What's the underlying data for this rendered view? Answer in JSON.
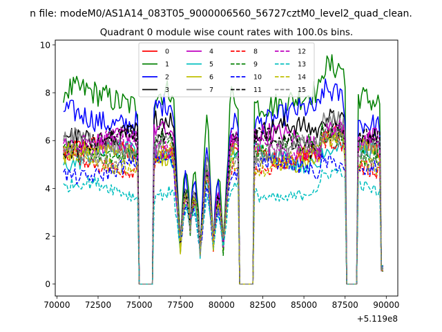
{
  "suptitle": "n file: modeM0/AS1A14_083T05_9000006560_56727cztM0_level2_quad_clean.",
  "chart_data": {
    "type": "line",
    "title": "Quadrant 0 module wise count rates with 100.0s bins.",
    "xlabel": "",
    "ylabel": "",
    "x_offset_label": "+5.119e8",
    "xlim": [
      69900,
      90700
    ],
    "ylim": [
      -0.5,
      10.2
    ],
    "x_ticks": [
      70000,
      72500,
      75000,
      77500,
      80000,
      82500,
      85000,
      87500,
      90000
    ],
    "x_tick_labels": [
      "70000",
      "72500",
      "75000",
      "77500",
      "80000",
      "82500",
      "85000",
      "87500",
      "90000"
    ],
    "y_ticks": [
      0,
      2,
      4,
      6,
      8,
      10
    ],
    "y_tick_labels": [
      "0",
      "2",
      "4",
      "6",
      "8",
      "10"
    ],
    "grid": false,
    "legend": "upper center, 4 columns",
    "x_range": [
      70400,
      89800
    ],
    "gaps": [
      [
        74900,
        75900
      ],
      [
        81000,
        82000
      ],
      [
        87500,
        88300
      ]
    ],
    "dips": [
      [
        77500,
        1.5
      ],
      [
        78100,
        2.2
      ],
      [
        78700,
        1.2
      ],
      [
        79500,
        1.6
      ],
      [
        80100,
        1.4
      ]
    ],
    "series": [
      {
        "name": "0",
        "color": "#ff0000",
        "dash": "solid",
        "level": 5.5
      },
      {
        "name": "1",
        "color": "#008000",
        "dash": "solid",
        "level": 7.8
      },
      {
        "name": "2",
        "color": "#0000ff",
        "dash": "solid",
        "level": 7.0
      },
      {
        "name": "3",
        "color": "#000000",
        "dash": "solid",
        "level": 6.3
      },
      {
        "name": "4",
        "color": "#bf00bf",
        "dash": "solid",
        "level": 6.0
      },
      {
        "name": "5",
        "color": "#00bfbf",
        "dash": "solid",
        "level": 5.3
      },
      {
        "name": "6",
        "color": "#bfbf00",
        "dash": "solid",
        "level": 5.4
      },
      {
        "name": "7",
        "color": "#808080",
        "dash": "solid",
        "level": 5.8
      },
      {
        "name": "8",
        "color": "#ff0000",
        "dash": "dashed",
        "level": 5.1
      },
      {
        "name": "9",
        "color": "#008000",
        "dash": "dashed",
        "level": 5.6
      },
      {
        "name": "10",
        "color": "#0000ff",
        "dash": "dashed",
        "level": 4.8
      },
      {
        "name": "11",
        "color": "#000000",
        "dash": "dashed",
        "level": 5.9
      },
      {
        "name": "12",
        "color": "#bf00bf",
        "dash": "dashed",
        "level": 5.7
      },
      {
        "name": "13",
        "color": "#00bfbf",
        "dash": "dashed",
        "level": 3.9
      },
      {
        "name": "14",
        "color": "#bfbf00",
        "dash": "dashed",
        "level": 5.2
      },
      {
        "name": "15",
        "color": "#808080",
        "dash": "dashed",
        "level": 5.5
      }
    ]
  }
}
